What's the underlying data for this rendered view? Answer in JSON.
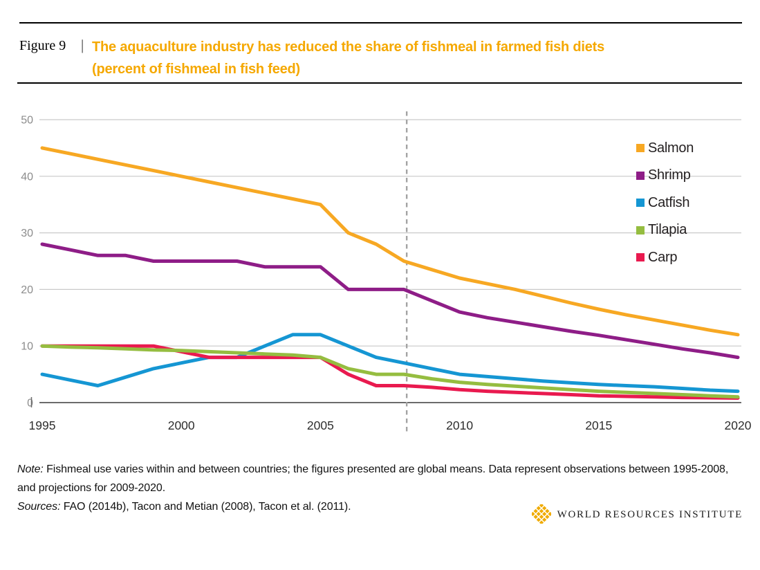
{
  "figure": {
    "label": "Figure 9",
    "separator": "|",
    "title_line1": "The aquaculture industry has reduced the share of fishmeal in farmed fish diets",
    "title_line2": "(percent of fishmeal in fish feed)",
    "title_color": "#F5A800"
  },
  "chart_data": {
    "type": "line",
    "title": "Percent of fishmeal in fish feed, 1995-2020",
    "xlabel": "",
    "ylabel": "",
    "ylim": [
      0,
      50
    ],
    "yticks": [
      50,
      40,
      30,
      20,
      10,
      0
    ],
    "xticks": [
      "1995",
      "2000",
      "2005",
      "2010",
      "2015",
      "2020"
    ],
    "grid": true,
    "legend_position": "right",
    "projection_divider_year": 2008.1,
    "x": [
      1995,
      1996,
      1997,
      1998,
      1999,
      2000,
      2001,
      2002,
      2003,
      2004,
      2005,
      2006,
      2007,
      2008,
      2009,
      2010,
      2011,
      2012,
      2013,
      2014,
      2015,
      2016,
      2017,
      2018,
      2019,
      2020
    ],
    "series": [
      {
        "name": "Salmon",
        "color": "#F7A823",
        "values": [
          45,
          44,
          43,
          42,
          41,
          40,
          39,
          38,
          37,
          36,
          35,
          30,
          28,
          25,
          23.5,
          22,
          21,
          20,
          18.8,
          17.6,
          16.5,
          15.5,
          14.6,
          13.7,
          12.8,
          12
        ]
      },
      {
        "name": "Shrimp",
        "color": "#8E1D87",
        "values": [
          28,
          27,
          26,
          26,
          25,
          25,
          25,
          25,
          24,
          24,
          24,
          20,
          20,
          20,
          18,
          16,
          15,
          14.2,
          13.4,
          12.6,
          11.9,
          11.1,
          10.3,
          9.5,
          8.8,
          8
        ]
      },
      {
        "name": "Catfish",
        "color": "#1596D3",
        "values": [
          5,
          4,
          3,
          4.5,
          6,
          7,
          8,
          8,
          10,
          12,
          12,
          10,
          8,
          7,
          6,
          5,
          4.6,
          4.2,
          3.8,
          3.5,
          3.2,
          3,
          2.8,
          2.5,
          2.2,
          2
        ]
      },
      {
        "name": "Tilapia",
        "color": "#95BD40",
        "values": [
          10,
          9.8,
          9.7,
          9.5,
          9.3,
          9.2,
          9,
          8.8,
          8.6,
          8.4,
          8,
          6,
          5,
          5,
          4.2,
          3.6,
          3.2,
          2.9,
          2.6,
          2.3,
          2,
          1.8,
          1.6,
          1.4,
          1.2,
          1
        ]
      },
      {
        "name": "Carp",
        "color": "#E91A4F",
        "values": [
          10,
          10,
          10,
          10,
          10,
          9,
          8,
          8,
          8,
          8,
          8,
          5,
          3,
          3,
          2.7,
          2.3,
          2,
          1.8,
          1.6,
          1.4,
          1.2,
          1.1,
          1,
          0.9,
          0.85,
          0.8
        ]
      }
    ]
  },
  "note": {
    "label": "Note:",
    "text": " Fishmeal use varies within and between countries; the figures presented are global means. Data represent observations between 1995-2008, and projections for 2009-2020."
  },
  "sources": {
    "label": "Sources:",
    "text": " FAO (2014b), Tacon and Metian (2008), Tacon et al. (2011)."
  },
  "logo": {
    "text": "WORLD RESOURCES INSTITUTE",
    "mark_color": "#F0AB00"
  }
}
